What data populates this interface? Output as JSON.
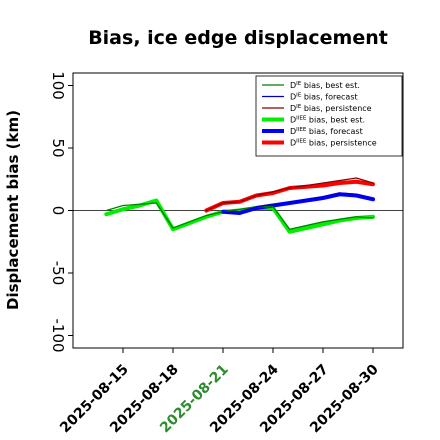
{
  "chart_data": {
    "type": "line",
    "title": "Bias, ice edge displacement",
    "ylabel": "Displacement bias (km)",
    "xlabel": "",
    "ylim": [
      -110,
      110
    ],
    "yticks": [
      -100,
      -50,
      0,
      50,
      100
    ],
    "x_tick_labels": [
      {
        "label": "2025-08-15",
        "color": "#000000"
      },
      {
        "label": "2025-08-18",
        "color": "#000000"
      },
      {
        "label": "2025-08-21",
        "color": "#2e8b2e"
      },
      {
        "label": "2025-08-24",
        "color": "#000000"
      },
      {
        "label": "2025-08-27",
        "color": "#000000"
      },
      {
        "label": "2025-08-30",
        "color": "#000000"
      }
    ],
    "xlim": [
      "2025-08-12",
      "2025-08-31.8"
    ],
    "zero_line": true,
    "grid": false,
    "legend_position": "top-right",
    "series": [
      {
        "name": "D^IE bias, best est.",
        "label_main": "D",
        "label_sup": "IE",
        "label_rest": " bias, best est.",
        "color": "#008000",
        "width": 1.2,
        "points": [
          [
            "2025-08-14",
            0
          ],
          [
            "2025-08-15",
            4
          ],
          [
            "2025-08-16",
            5
          ],
          [
            "2025-08-17",
            6
          ],
          [
            "2025-08-18",
            -14
          ],
          [
            "2025-08-19",
            -9
          ],
          [
            "2025-08-20",
            -4
          ],
          [
            "2025-08-21",
            -1
          ],
          [
            "2025-08-22",
            1
          ],
          [
            "2025-08-23",
            3
          ],
          [
            "2025-08-24",
            3
          ],
          [
            "2025-08-25",
            -15
          ],
          [
            "2025-08-26",
            -12
          ],
          [
            "2025-08-27",
            -9
          ],
          [
            "2025-08-28",
            -7
          ],
          [
            "2025-08-29",
            -5
          ],
          [
            "2025-08-30",
            -6
          ]
        ]
      },
      {
        "name": "D^IE bias, forecast",
        "label_main": "D",
        "label_sup": "IE",
        "label_rest": " bias, forecast",
        "color": "#0000cc",
        "width": 1.2,
        "points": [
          [
            "2025-08-21",
            -1
          ],
          [
            "2025-08-22",
            -2
          ],
          [
            "2025-08-23",
            3
          ],
          [
            "2025-08-24",
            5
          ],
          [
            "2025-08-25",
            6
          ],
          [
            "2025-08-26",
            9
          ],
          [
            "2025-08-27",
            11
          ],
          [
            "2025-08-28",
            14
          ],
          [
            "2025-08-29",
            13
          ],
          [
            "2025-08-30",
            9
          ]
        ]
      },
      {
        "name": "D^IE bias, persistence",
        "label_main": "D",
        "label_sup": "IE",
        "label_rest": " bias, persistence",
        "color": "#8b0000",
        "width": 1.2,
        "points": [
          [
            "2025-08-20",
            0
          ],
          [
            "2025-08-21",
            6
          ],
          [
            "2025-08-22",
            7
          ],
          [
            "2025-08-23",
            12
          ],
          [
            "2025-08-24",
            15
          ],
          [
            "2025-08-25",
            18
          ],
          [
            "2025-08-26",
            20
          ],
          [
            "2025-08-27",
            22
          ],
          [
            "2025-08-28",
            24
          ],
          [
            "2025-08-29",
            26
          ],
          [
            "2025-08-30",
            22
          ]
        ]
      },
      {
        "name": "D^IIEE bias, best est.",
        "label_main": "D",
        "label_sup": "IIEE",
        "label_rest": " bias, best est.",
        "color": "#00ee00",
        "width": 4,
        "points": [
          [
            "2025-08-14",
            -3
          ],
          [
            "2025-08-15",
            1
          ],
          [
            "2025-08-16",
            4
          ],
          [
            "2025-08-17",
            8
          ],
          [
            "2025-08-18",
            -15
          ],
          [
            "2025-08-19",
            -10
          ],
          [
            "2025-08-20",
            -5
          ],
          [
            "2025-08-21",
            -1
          ],
          [
            "2025-08-22",
            0
          ],
          [
            "2025-08-23",
            2
          ],
          [
            "2025-08-24",
            2
          ],
          [
            "2025-08-25",
            -17
          ],
          [
            "2025-08-26",
            -14
          ],
          [
            "2025-08-27",
            -11
          ],
          [
            "2025-08-28",
            -8
          ],
          [
            "2025-08-29",
            -6
          ],
          [
            "2025-08-30",
            -5
          ]
        ]
      },
      {
        "name": "D^IIEE bias, forecast",
        "label_main": "D",
        "label_sup": "IIEE",
        "label_rest": " bias, forecast",
        "color": "#0000ff",
        "width": 4,
        "points": [
          [
            "2025-08-21",
            -1
          ],
          [
            "2025-08-22",
            -2
          ],
          [
            "2025-08-23",
            2
          ],
          [
            "2025-08-24",
            4
          ],
          [
            "2025-08-25",
            6
          ],
          [
            "2025-08-26",
            8
          ],
          [
            "2025-08-27",
            10
          ],
          [
            "2025-08-28",
            13
          ],
          [
            "2025-08-29",
            12
          ],
          [
            "2025-08-30",
            9
          ]
        ]
      },
      {
        "name": "D^IIEE bias, persistence",
        "label_main": "D",
        "label_sup": "IIEE",
        "label_rest": " bias, persistence",
        "color": "#ff0000",
        "width": 4,
        "points": [
          [
            "2025-08-20",
            0
          ],
          [
            "2025-08-21",
            6
          ],
          [
            "2025-08-22",
            7
          ],
          [
            "2025-08-23",
            12
          ],
          [
            "2025-08-24",
            14
          ],
          [
            "2025-08-25",
            18
          ],
          [
            "2025-08-26",
            19
          ],
          [
            "2025-08-27",
            20
          ],
          [
            "2025-08-28",
            22
          ],
          [
            "2025-08-29",
            23
          ],
          [
            "2025-08-30",
            21
          ]
        ]
      }
    ]
  }
}
